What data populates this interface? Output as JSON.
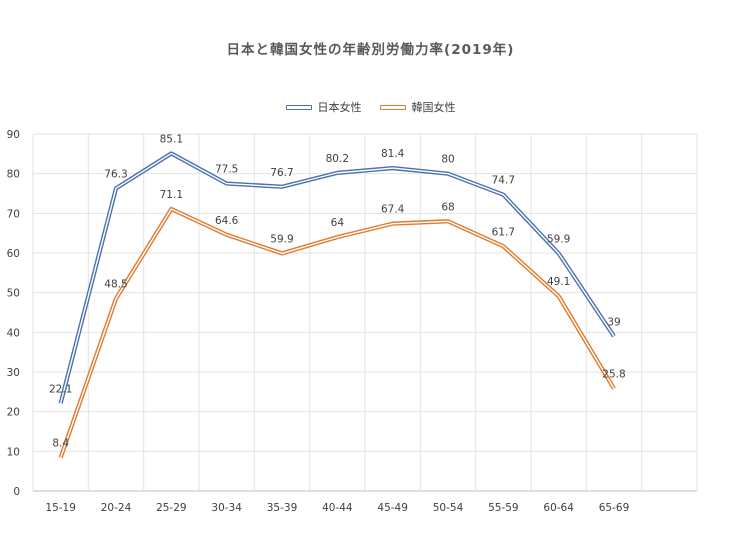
{
  "chart_data": {
    "type": "line",
    "title": "日本と韓国女性の年齢別労働力率(2019年)",
    "xlabel": "",
    "ylabel": "",
    "ylim": [
      0,
      90
    ],
    "yticks": [
      "0",
      "10",
      "20",
      "30",
      "40",
      "50",
      "60",
      "70",
      "80",
      "90"
    ],
    "categories": [
      "15-19",
      "20-24",
      "25-29",
      "30-34",
      "35-39",
      "40-44",
      "45-49",
      "50-54",
      "55-59",
      "60-64",
      "65-69"
    ],
    "grid": true,
    "legend_position": "top-center",
    "series": [
      {
        "name": "日本女性",
        "color": "#4a72b0",
        "values": [
          22.1,
          76.3,
          85.1,
          77.5,
          76.7,
          80.2,
          81.4,
          80,
          74.7,
          59.9,
          39
        ],
        "labels": [
          "22.1",
          "76.3",
          "85.1",
          "77.5",
          "76.7",
          "80.2",
          "81.4",
          "80",
          "74.7",
          "59.9",
          "39"
        ]
      },
      {
        "name": "韓国女性",
        "color": "#e07b30",
        "values": [
          8.4,
          48.5,
          71.1,
          64.6,
          59.9,
          64,
          67.4,
          68,
          61.7,
          49.1,
          25.8
        ],
        "labels": [
          "8.4",
          "48.5",
          "71.1",
          "64.6",
          "59.9",
          "64",
          "67.4",
          "68",
          "61.7",
          "49.1",
          "25.8"
        ]
      }
    ]
  }
}
